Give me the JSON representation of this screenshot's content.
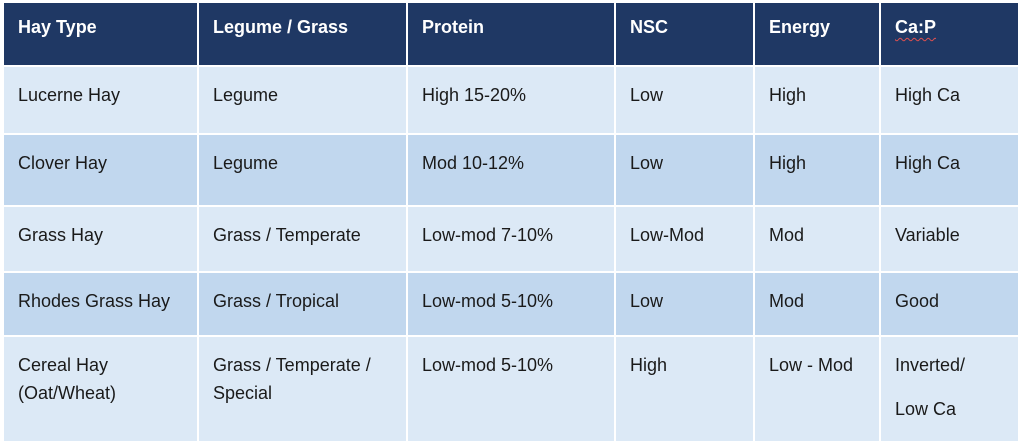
{
  "table": {
    "headers": {
      "hay_type": "Hay Type",
      "legume_grass": "Legume / Grass",
      "protein": "Protein",
      "nsc": "NSC",
      "energy": "Energy",
      "ca_p": "Ca:P"
    },
    "rows": [
      {
        "hay_type": "Lucerne Hay",
        "legume_grass": "Legume",
        "protein": "High 15-20%",
        "nsc": "Low",
        "energy": "High",
        "ca_p": "High Ca"
      },
      {
        "hay_type": "Clover Hay",
        "legume_grass": "Legume",
        "protein": "Mod 10-12%",
        "nsc": "Low",
        "energy": "High",
        "ca_p": "High Ca"
      },
      {
        "hay_type": "Grass Hay",
        "legume_grass": "Grass / Temperate",
        "protein": "Low-mod 7-10%",
        "nsc": "Low-Mod",
        "energy": "Mod",
        "ca_p": "Variable"
      },
      {
        "hay_type": "Rhodes Grass Hay",
        "legume_grass": "Grass / Tropical",
        "protein": "Low-mod 5-10%",
        "nsc": "Low",
        "energy": "Mod",
        "ca_p": "Good"
      },
      {
        "hay_type_line1": "Cereal Hay",
        "hay_type_line2": "(Oat/Wheat)",
        "legume_grass_line1": "Grass / Temperate /",
        "legume_grass_line2": "Special",
        "protein": "Low-mod 5-10%",
        "nsc": "High",
        "energy": "Low - Mod",
        "ca_p_line1": "Inverted/",
        "ca_p_line2": "Low Ca"
      }
    ]
  },
  "colors": {
    "header_bg": "#1f3864",
    "row_light": "#dce9f6",
    "row_dark": "#c1d7ee"
  }
}
